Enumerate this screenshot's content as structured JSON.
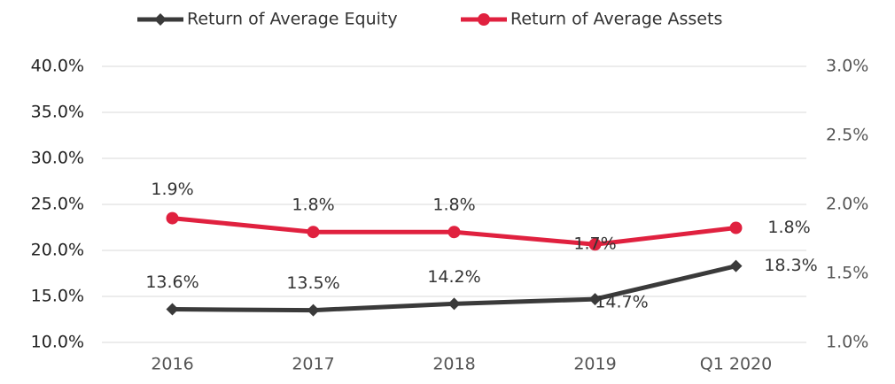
{
  "chart_data": {
    "type": "line",
    "categories": [
      "2016",
      "2017",
      "2018",
      "2019",
      "Q1 2020"
    ],
    "series": [
      {
        "name": "Return of Average Equity",
        "color": "#3a3a3a",
        "marker": "diamond",
        "values": [
          13.6,
          13.5,
          14.2,
          14.7,
          18.3
        ],
        "value_labels": [
          "13.6%",
          "13.5%",
          "14.2%",
          "14.7%",
          "18.3%"
        ]
      },
      {
        "name": "Return of Average Assets",
        "color": "#e0213f",
        "marker": "circle",
        "axis": "y2",
        "values": [
          1.9,
          1.8,
          1.8,
          1.71,
          1.83
        ],
        "value_labels": [
          "1.9%",
          "1.8%",
          "1.8%",
          "1.7%",
          "1.8%"
        ]
      }
    ],
    "ylim": [
      10,
      40
    ],
    "yticks": [
      {
        "value": 10,
        "label": "10.0%"
      },
      {
        "value": 15,
        "label": "15.0%"
      },
      {
        "value": 20,
        "label": "20.0%"
      },
      {
        "value": 25,
        "label": "25.0%"
      },
      {
        "value": 30,
        "label": "30.0%"
      },
      {
        "value": 35,
        "label": "35.0%"
      },
      {
        "value": 40,
        "label": "40.0%"
      }
    ],
    "y2lim": [
      1,
      3
    ],
    "y2ticks": [
      {
        "value": 1,
        "label": "1.0%"
      },
      {
        "value": 1.5,
        "label": "1.5%"
      },
      {
        "value": 2,
        "label": "2.0%"
      },
      {
        "value": 2.5,
        "label": "2.5%"
      },
      {
        "value": 3,
        "label": "3.0%"
      }
    ],
    "grid": true,
    "legend": "top"
  }
}
